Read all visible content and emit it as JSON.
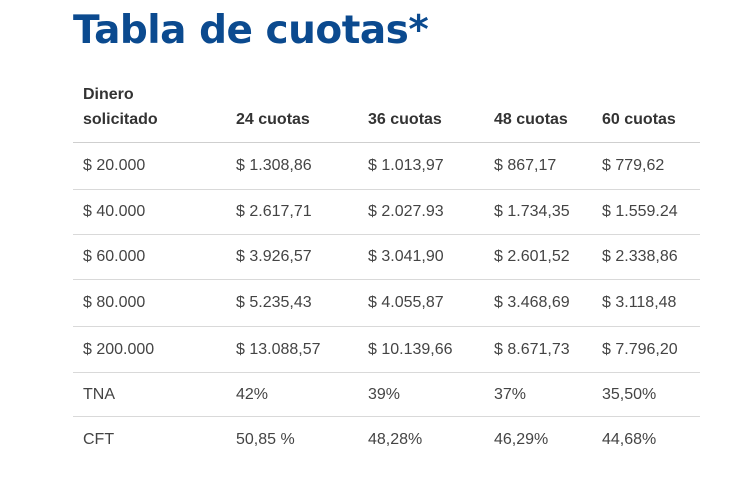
{
  "title": "Tabla de cuotas*",
  "table": {
    "headers": [
      [
        "Dinero",
        "solicitado"
      ],
      "24 cuotas",
      "36 cuotas",
      "48 cuotas",
      "60 cuotas"
    ],
    "rows": [
      [
        "$ 20.000",
        "$ 1.308,86",
        "$ 1.013,97",
        "$ 867,17",
        "$ 779,62"
      ],
      [
        "$ 40.000",
        "$ 2.617,71",
        "$ 2.027.93",
        "$ 1.734,35",
        "$ 1.559.24"
      ],
      [
        "$ 60.000",
        "$ 3.926,57",
        "$ 3.041,90",
        "$ 2.601,52",
        "$ 2.338,86"
      ],
      [
        "$ 80.000",
        "$ 5.235,43",
        "$ 4.055,87",
        "$ 3.468,69",
        "$ 3.118,48"
      ],
      [
        "$ 200.000",
        "$ 13.088,57",
        "$ 10.139,66",
        "$ 8.671,73",
        "$ 7.796,20"
      ],
      [
        "TNA",
        "42%",
        "39%",
        "37%",
        "35,50%"
      ],
      [
        "CFT",
        "50,85 %",
        "48,28%",
        "46,29%",
        "44,68%"
      ]
    ]
  }
}
